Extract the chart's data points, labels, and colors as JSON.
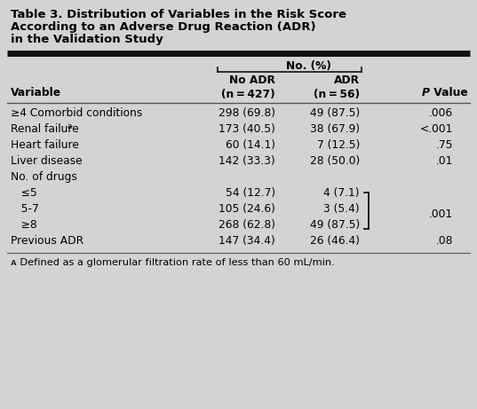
{
  "title_lines": [
    "Table 3. Distribution of Variables in the Risk Score",
    "According to an Adverse Drug Reaction (ADR)",
    "in the Validation Study"
  ],
  "subheader": "No. (%)",
  "bg_color": "#d3d3d3",
  "thick_line_color": "#111111",
  "thin_line_color": "#555555",
  "title_fontsize": 9.5,
  "header_fontsize": 8.8,
  "body_fontsize": 8.8,
  "footnote_fontsize": 8.2,
  "row_data": [
    [
      "≥4 Comorbid conditions",
      "298 (69.8)",
      "49 (87.5)",
      ".006",
      false
    ],
    [
      "Renal failure",
      "173 (40.5)",
      "38 (67.9)",
      "<.001",
      true
    ],
    [
      "Heart failure",
      "60 (14.1)",
      "7 (12.5)",
      ".75",
      false
    ],
    [
      "Liver disease",
      "142 (33.3)",
      "28 (50.0)",
      ".01",
      false
    ],
    [
      "No. of drugs",
      "",
      "",
      "",
      false
    ],
    [
      "   ≤5",
      "54 (12.7)",
      "4 (7.1)",
      "",
      false
    ],
    [
      "   5-7",
      "105 (24.6)",
      "3 (5.4)",
      "",
      false
    ],
    [
      "   ≥8",
      "268 (62.8)",
      "49 (87.5)",
      "",
      false
    ],
    [
      "Previous ADR",
      "147 (34.4)",
      "26 (46.4)",
      ".08",
      false
    ]
  ],
  "footnote": "ᴀ Defined as a glomerular filtration rate of less than 60 mL/min."
}
